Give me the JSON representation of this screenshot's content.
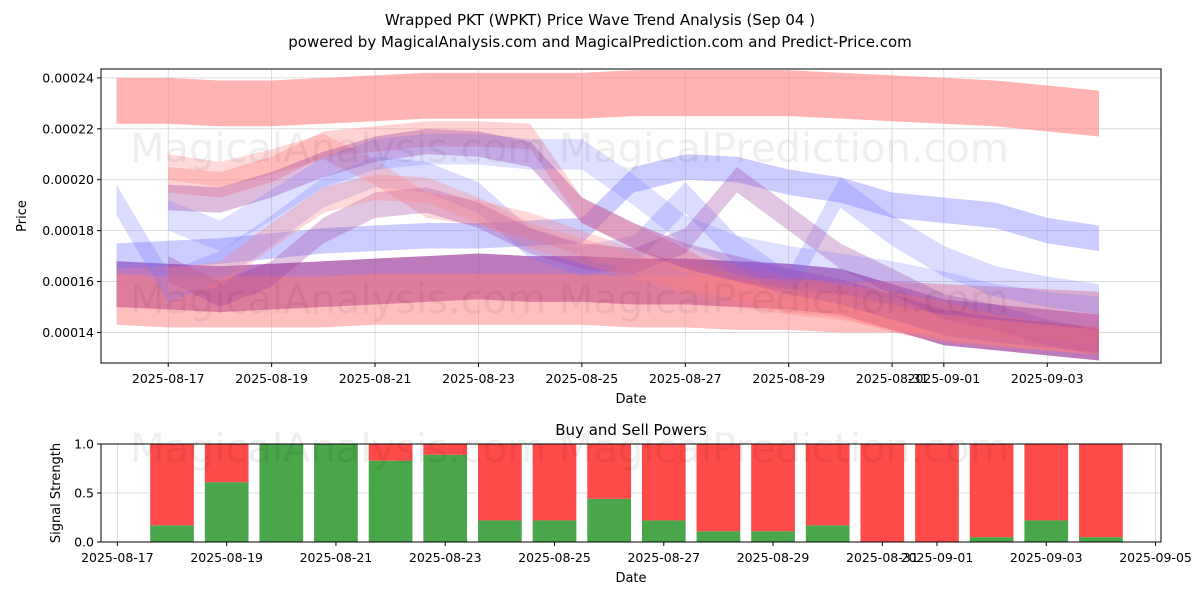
{
  "title_line1": "Wrapped PKT (WPKT) Price Wave Trend Analysis (Sep 04 )",
  "title_line2": "powered by MagicalAnalysis.com and MagicalPrediction.com and Predict-Price.com",
  "watermark": "MagicalAnalysis.com   MagicalPrediction.com",
  "colors": {
    "buy": "#4aa64a",
    "sell": "#ff4a4a",
    "band_red": "#ff8080",
    "band_blue": "#6e6eff",
    "band_purple": "#a040a0"
  },
  "chart_data": [
    {
      "type": "line",
      "title": "",
      "xlabel": "Date",
      "ylabel": "Price",
      "x_dates": [
        "2025-08-16",
        "2025-08-17",
        "2025-08-18",
        "2025-08-19",
        "2025-08-20",
        "2025-08-21",
        "2025-08-22",
        "2025-08-23",
        "2025-08-24",
        "2025-08-25",
        "2025-08-26",
        "2025-08-27",
        "2025-08-28",
        "2025-08-29",
        "2025-08-30",
        "2025-08-31",
        "2025-09-01",
        "2025-09-02",
        "2025-09-03",
        "2025-09-04"
      ],
      "x_range": [
        "2025-08-15.7",
        "2025-09-05.2"
      ],
      "ylim": [
        0.000128,
        0.0002435
      ],
      "y_ticks": [
        "0.00014",
        "0.00016",
        "0.00018",
        "0.00020",
        "0.00022",
        "0.00024"
      ],
      "y_tick_values": [
        0.00014,
        0.00016,
        0.00018,
        0.0002,
        0.00022,
        0.00024
      ],
      "x_ticks": [
        "2025-08-17",
        "2025-08-19",
        "2025-08-21",
        "2025-08-23",
        "2025-08-25",
        "2025-08-27",
        "2025-08-29",
        "2025-08-31",
        "2025-09-01",
        "2025-09-03"
      ],
      "x_tick_days": [
        1,
        3,
        5,
        7,
        9,
        11,
        13,
        15,
        16,
        18
      ],
      "grid": true,
      "series": [
        {
          "name": "red-top-band",
          "color": "red",
          "opacity": 0.6,
          "width": 1.8e-05,
          "start": 0,
          "values": [
            0.000231,
            0.000231,
            0.00023,
            0.00023,
            0.000231,
            0.000232,
            0.000233,
            0.000233,
            0.000233,
            0.000233,
            0.000234,
            0.000234,
            0.000234,
            0.000234,
            0.000233,
            0.000232,
            0.000231,
            0.00023,
            0.000228,
            0.000226
          ]
        },
        {
          "name": "purple-low-band",
          "color": "purple",
          "opacity": 0.7,
          "width": 1.8e-05,
          "start": 0,
          "values": [
            0.000159,
            0.000158,
            0.000157,
            0.000158,
            0.000159,
            0.00016,
            0.000161,
            0.000162,
            0.000161,
            0.000161,
            0.00016,
            0.00016,
            0.000159,
            0.000158,
            0.000156,
            0.00015,
            0.000144,
            0.000142,
            0.00014,
            0.000138
          ]
        },
        {
          "name": "red-bottom-band",
          "color": "red",
          "opacity": 0.5,
          "width": 2e-05,
          "start": 0,
          "values": [
            0.000153,
            0.000152,
            0.000152,
            0.000152,
            0.000152,
            0.000153,
            0.000153,
            0.000153,
            0.000153,
            0.000153,
            0.000152,
            0.000152,
            0.000151,
            0.000151,
            0.00015,
            0.00015,
            0.000149,
            0.000148,
            0.000147,
            0.000146
          ]
        },
        {
          "name": "blue-band-a",
          "color": "blue",
          "opacity": 0.35,
          "width": 1e-05,
          "start": 0,
          "values": [
            0.00017,
            0.000171,
            0.000172,
            0.000174,
            0.000176,
            0.000177,
            0.000178,
            0.000178,
            0.000179,
            0.00018,
            0.0002,
            0.000205,
            0.000204,
            0.000199,
            0.000196,
            0.00019,
            0.000188,
            0.000186,
            0.00018,
            0.000177
          ]
        },
        {
          "name": "blue-band-b",
          "color": "blue",
          "opacity": 0.25,
          "width": 1.2e-05,
          "start": 0,
          "values": [
            0.000192,
            0.000158,
            0.000166,
            0.00018,
            0.000195,
            0.000203,
            0.000201,
            0.000193,
            0.000175,
            0.000168,
            0.000172,
            0.000193,
            0.000172,
            0.000158,
            0.000195,
            0.00018,
            0.000168,
            0.00016,
            0.000156,
            0.000153
          ]
        },
        {
          "name": "red-wave-a",
          "color": "red",
          "opacity": 0.35,
          "width": 1e-05,
          "start": 1,
          "values": [
            0.0002,
            0.000198,
            0.000204,
            0.000214,
            0.000216,
            0.000218,
            0.000218,
            0.000217,
            0.000188,
            0.000178,
            0.000168,
            0.000157,
            0.000153,
            0.000151,
            0.000145,
            0.000141,
            0.000139,
            0.000138,
            0.000137
          ]
        },
        {
          "name": "red-wave-b",
          "color": "red",
          "opacity": 0.3,
          "width": 1e-05,
          "start": 1,
          "values": [
            0.000205,
            0.000202,
            0.000207,
            0.000213,
            0.000203,
            0.00019,
            0.000187,
            0.000182,
            0.000175,
            0.000168,
            0.000162,
            0.000158,
            0.000155,
            0.000153,
            0.000148,
            0.000142,
            0.00014,
            0.000138,
            0.000136
          ]
        },
        {
          "name": "purple-wave-a",
          "color": "purple",
          "opacity": 0.35,
          "width": 1e-05,
          "start": 1,
          "values": [
            0.000193,
            0.000192,
            0.000198,
            0.000206,
            0.000212,
            0.000215,
            0.000214,
            0.00021,
            0.000188,
            0.000178,
            0.00017,
            0.000165,
            0.00016,
            0.000156,
            0.00015,
            0.000144,
            0.000141,
            0.000139,
            0.000137
          ]
        },
        {
          "name": "purple-wave-b",
          "color": "purple",
          "opacity": 0.3,
          "width": 1e-05,
          "start": 1,
          "values": [
            0.000165,
            0.000155,
            0.000163,
            0.00018,
            0.00019,
            0.000192,
            0.000186,
            0.000176,
            0.00017,
            0.000168,
            0.000176,
            0.0002,
            0.000185,
            0.00017,
            0.00016,
            0.00015,
            0.000146,
            0.00014,
            0.000136
          ]
        },
        {
          "name": "red-wave-c",
          "color": "red",
          "opacity": 0.3,
          "width": 1e-05,
          "start": 1,
          "values": [
            0.00016,
            0.000163,
            0.000178,
            0.000192,
            0.000197,
            0.000196,
            0.000188,
            0.000178,
            0.000172,
            0.000166,
            0.00016,
            0.000155,
            0.000152,
            0.00015,
            0.000146,
            0.000142,
            0.00014,
            0.000138,
            0.000136
          ]
        },
        {
          "name": "blue-band-c",
          "color": "blue",
          "opacity": 0.22,
          "width": 1.2e-05,
          "start": 1,
          "values": [
            0.000186,
            0.000178,
            0.00019,
            0.000203,
            0.00021,
            0.000212,
            0.000212,
            0.00021,
            0.00021,
            0.000196,
            0.00018,
            0.000172,
            0.000168,
            0.000165,
            0.000162,
            0.000158,
            0.000153,
            0.00015,
            0.000148
          ]
        }
      ]
    },
    {
      "type": "bar",
      "title": "Buy and Sell Powers",
      "xlabel": "Date",
      "ylabel": "Signal Strength",
      "ylim": [
        0,
        1.0
      ],
      "y_ticks": [
        "0.0",
        "0.5",
        "1.0"
      ],
      "y_tick_values": [
        0.0,
        0.5,
        1.0
      ],
      "x_range": [
        "2025-08-16.7",
        "2025-09-05.1"
      ],
      "x_ticks": [
        "2025-08-17",
        "2025-08-19",
        "2025-08-21",
        "2025-08-23",
        "2025-08-25",
        "2025-08-27",
        "2025-08-29",
        "2025-08-31",
        "2025-09-01",
        "2025-09-03",
        "2025-09-05"
      ],
      "x_tick_days": [
        1,
        3,
        5,
        7,
        9,
        11,
        13,
        15,
        16,
        18,
        20
      ],
      "bar_days": [
        2,
        3,
        4,
        5,
        6,
        7,
        8,
        9,
        10,
        11,
        12,
        13,
        14,
        15,
        16,
        17,
        18,
        19
      ],
      "categories": [
        "2025-08-18",
        "2025-08-19",
        "2025-08-20",
        "2025-08-21",
        "2025-08-22",
        "2025-08-23",
        "2025-08-24",
        "2025-08-25",
        "2025-08-26",
        "2025-08-27",
        "2025-08-28",
        "2025-08-29",
        "2025-08-30",
        "2025-08-31",
        "2025-09-01",
        "2025-09-02",
        "2025-09-03",
        "2025-09-04"
      ],
      "series": [
        {
          "name": "Buy",
          "values": [
            0.17,
            0.61,
            1.0,
            1.0,
            0.83,
            0.89,
            0.22,
            0.22,
            0.44,
            0.22,
            0.11,
            0.11,
            0.17,
            0.0,
            0.0,
            0.05,
            0.22,
            0.05
          ]
        },
        {
          "name": "Sell",
          "values": [
            0.83,
            0.39,
            0.0,
            0.0,
            0.17,
            0.11,
            0.78,
            0.78,
            0.56,
            0.78,
            0.89,
            0.89,
            0.83,
            1.0,
            1.0,
            0.95,
            0.78,
            0.95
          ]
        }
      ]
    }
  ]
}
